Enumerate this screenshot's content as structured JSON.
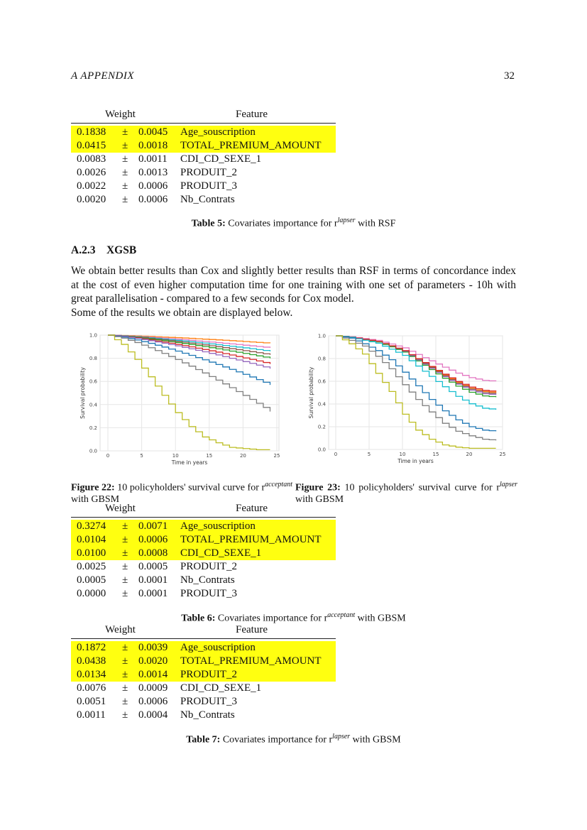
{
  "header": {
    "section": "A   APPENDIX",
    "page_number": "32"
  },
  "table5": {
    "headers": [
      "Weight",
      "Feature"
    ],
    "rows": [
      {
        "weight": "0.1838",
        "pm": "±",
        "error": "0.0045",
        "feature": "Age_souscription",
        "highlight": true
      },
      {
        "weight": "0.0415",
        "pm": "±",
        "error": "0.0018",
        "feature": "TOTAL_PREMIUM_AMOUNT",
        "highlight": true
      },
      {
        "weight": "0.0083",
        "pm": "±",
        "error": "0.0011",
        "feature": "CDI_CD_SEXE_1",
        "highlight": false
      },
      {
        "weight": "0.0026",
        "pm": "±",
        "error": "0.0013",
        "feature": "PRODUIT_2",
        "highlight": false
      },
      {
        "weight": "0.0022",
        "pm": "±",
        "error": "0.0006",
        "feature": "PRODUIT_3",
        "highlight": false
      },
      {
        "weight": "0.0020",
        "pm": "±",
        "error": "0.0006",
        "feature": "Nb_Contrats",
        "highlight": false
      }
    ],
    "caption_label": "Table 5:",
    "caption_text": "Covariates importance for r",
    "caption_sup": "lapser",
    "caption_tail": " with RSF"
  },
  "section": {
    "number": "A.2.3",
    "title": "XGSB"
  },
  "paragraph": [
    "We obtain better results than Cox and slightly better results than RSF in terms of concordance index at the cost of even higher computation time for one training with one set of parameters - 10h with great parallelisation - compared to a few seconds for Cox model.",
    "Some of the results we obtain are displayed below."
  ],
  "highlight_color": "#ffff10",
  "chart_data": [
    {
      "type": "line",
      "step": true,
      "title": "",
      "xlabel": "Time in years",
      "ylabel": "Survival probability",
      "xlim": [
        0,
        25
      ],
      "ylim": [
        0,
        1
      ],
      "xticks": [
        "0",
        "5",
        "10",
        "15",
        "20",
        "25"
      ],
      "yticks": [
        "0.0",
        "0.2",
        "0.4",
        "0.6",
        "0.8",
        "1.0"
      ],
      "grid": true,
      "x": [
        0,
        2,
        4,
        6,
        8,
        10,
        12,
        14,
        16,
        18,
        20,
        22,
        24
      ],
      "series": [
        {
          "color": "#ff7f0e",
          "values": [
            1,
            0.997,
            0.993,
            0.988,
            0.983,
            0.978,
            0.972,
            0.965,
            0.959,
            0.952,
            0.945,
            0.937,
            0.93
          ]
        },
        {
          "color": "#e377c2",
          "values": [
            1,
            0.996,
            0.989,
            0.982,
            0.974,
            0.965,
            0.955,
            0.945,
            0.935,
            0.924,
            0.913,
            0.902,
            0.89
          ]
        },
        {
          "color": "#17becf",
          "values": [
            1,
            0.994,
            0.986,
            0.977,
            0.966,
            0.955,
            0.943,
            0.931,
            0.917,
            0.904,
            0.89,
            0.875,
            0.86
          ]
        },
        {
          "color": "#8c564b",
          "values": [
            1,
            0.993,
            0.984,
            0.972,
            0.959,
            0.946,
            0.931,
            0.916,
            0.9,
            0.883,
            0.866,
            0.848,
            0.83
          ]
        },
        {
          "color": "#2ca02c",
          "values": [
            1,
            0.992,
            0.981,
            0.967,
            0.952,
            0.936,
            0.919,
            0.901,
            0.882,
            0.862,
            0.842,
            0.821,
            0.8
          ]
        },
        {
          "color": "#d62728",
          "values": [
            1,
            0.99,
            0.976,
            0.959,
            0.94,
            0.92,
            0.899,
            0.876,
            0.853,
            0.828,
            0.803,
            0.777,
            0.75
          ]
        },
        {
          "color": "#9467bd",
          "values": [
            1,
            0.989,
            0.972,
            0.952,
            0.93,
            0.907,
            0.882,
            0.856,
            0.829,
            0.8,
            0.771,
            0.741,
            0.71
          ]
        },
        {
          "color": "#1f77b4",
          "values": [
            1,
            0.983,
            0.958,
            0.929,
            0.897,
            0.862,
            0.825,
            0.787,
            0.746,
            0.704,
            0.661,
            0.616,
            0.57
          ]
        },
        {
          "color": "#7f7f7f",
          "values": [
            1,
            0.974,
            0.936,
            0.891,
            0.842,
            0.789,
            0.732,
            0.673,
            0.611,
            0.546,
            0.479,
            0.411,
            0.34
          ]
        },
        {
          "color": "#bcbd22",
          "values": [
            1,
            0.92,
            0.79,
            0.64,
            0.48,
            0.33,
            0.21,
            0.12,
            0.07,
            0.03,
            0.02,
            0.01,
            0.01
          ]
        }
      ]
    },
    {
      "type": "line",
      "step": true,
      "title": "",
      "xlabel": "Time in years",
      "ylabel": "Survival probability",
      "xlim": [
        0,
        25
      ],
      "ylim": [
        0,
        1
      ],
      "xticks": [
        "0",
        "5",
        "10",
        "15",
        "20",
        "25"
      ],
      "yticks": [
        "0.0",
        "0.2",
        "0.4",
        "0.6",
        "0.8",
        "1.0"
      ],
      "grid": true,
      "x": [
        0,
        2,
        4,
        6,
        8,
        10,
        12,
        14,
        16,
        18,
        20,
        22,
        24
      ],
      "series": [
        {
          "color": "#e377c2",
          "values": [
            1,
            0.992,
            0.976,
            0.96,
            0.928,
            0.894,
            0.836,
            0.78,
            0.724,
            0.672,
            0.632,
            0.608,
            0.6
          ]
        },
        {
          "color": "#ff7f0e",
          "values": [
            1,
            0.99,
            0.97,
            0.95,
            0.91,
            0.868,
            0.795,
            0.725,
            0.655,
            0.59,
            0.54,
            0.51,
            0.5
          ]
        },
        {
          "color": "#8c564b",
          "values": [
            1,
            0.99,
            0.969,
            0.949,
            0.908,
            0.865,
            0.791,
            0.72,
            0.648,
            0.582,
            0.531,
            0.5,
            0.49
          ]
        },
        {
          "color": "#9467bd",
          "values": [
            1,
            0.99,
            0.969,
            0.948,
            0.906,
            0.862,
            0.787,
            0.714,
            0.641,
            0.574,
            0.522,
            0.49,
            0.48
          ]
        },
        {
          "color": "#2ca02c",
          "values": [
            1,
            0.989,
            0.968,
            0.946,
            0.903,
            0.857,
            0.779,
            0.703,
            0.627,
            0.557,
            0.503,
            0.471,
            0.46
          ]
        },
        {
          "color": "#d62728",
          "values": [
            1,
            0.99,
            0.97,
            0.951,
            0.912,
            0.87,
            0.799,
            0.73,
            0.662,
            0.598,
            0.549,
            0.52,
            0.51
          ]
        },
        {
          "color": "#17becf",
          "values": [
            1,
            0.987,
            0.961,
            0.935,
            0.883,
            0.828,
            0.734,
            0.643,
            0.552,
            0.467,
            0.402,
            0.363,
            0.35
          ]
        },
        {
          "color": "#1f77b4",
          "values": [
            1,
            0.98,
            0.93,
            0.87,
            0.79,
            0.68,
            0.56,
            0.44,
            0.34,
            0.26,
            0.2,
            0.17,
            0.16
          ]
        },
        {
          "color": "#7f7f7f",
          "values": [
            1,
            0.96,
            0.91,
            0.82,
            0.71,
            0.57,
            0.44,
            0.33,
            0.23,
            0.16,
            0.12,
            0.09,
            0.08
          ]
        },
        {
          "color": "#bcbd22",
          "values": [
            1,
            0.93,
            0.84,
            0.67,
            0.51,
            0.31,
            0.17,
            0.09,
            0.04,
            0.02,
            0.01,
            0.01,
            0.01
          ]
        }
      ]
    }
  ],
  "figures": [
    {
      "label": "Figure 22:",
      "text": "10 policyholders' survival curve for r",
      "sup": "acceptant",
      "tail": " with GBSM"
    },
    {
      "label": "Figure 23:",
      "text": "10 policyholders' survival curve for r",
      "sup": "lapser",
      "tail": " with GBSM"
    }
  ],
  "table6": {
    "headers": [
      "Weight",
      "Feature"
    ],
    "rows": [
      {
        "weight": "0.3274",
        "pm": "±",
        "error": "0.0071",
        "feature": "Age_souscription",
        "highlight": true
      },
      {
        "weight": "0.0104",
        "pm": "±",
        "error": "0.0006",
        "feature": "TOTAL_PREMIUM_AMOUNT",
        "highlight": true
      },
      {
        "weight": "0.0100",
        "pm": "±",
        "error": "0.0008",
        "feature": "CDI_CD_SEXE_1",
        "highlight": true
      },
      {
        "weight": "0.0025",
        "pm": "±",
        "error": "0.0005",
        "feature": "PRODUIT_2",
        "highlight": false
      },
      {
        "weight": "0.0005",
        "pm": "±",
        "error": "0.0001",
        "feature": "Nb_Contrats",
        "highlight": false
      },
      {
        "weight": "0.0000",
        "pm": "±",
        "error": "0.0001",
        "feature": "PRODUIT_3",
        "highlight": false
      }
    ],
    "caption_label": "Table 6:",
    "caption_text": "Covariates importance for r",
    "caption_sup": "acceptant",
    "caption_tail": " with GBSM"
  },
  "table7": {
    "headers": [
      "Weight",
      "Feature"
    ],
    "rows": [
      {
        "weight": "0.1872",
        "pm": "±",
        "error": "0.0039",
        "feature": "Age_souscription",
        "highlight": true
      },
      {
        "weight": "0.0438",
        "pm": "±",
        "error": "0.0020",
        "feature": "TOTAL_PREMIUM_AMOUNT",
        "highlight": true
      },
      {
        "weight": "0.0134",
        "pm": "±",
        "error": "0.0014",
        "feature": "PRODUIT_2",
        "highlight": true
      },
      {
        "weight": "0.0076",
        "pm": "±",
        "error": "0.0009",
        "feature": "CDI_CD_SEXE_1",
        "highlight": false
      },
      {
        "weight": "0.0051",
        "pm": "±",
        "error": "0.0006",
        "feature": "PRODUIT_3",
        "highlight": false
      },
      {
        "weight": "0.0011",
        "pm": "±",
        "error": "0.0004",
        "feature": "Nb_Contrats",
        "highlight": false
      }
    ],
    "caption_label": "Table 7:",
    "caption_text": "Covariates importance for r",
    "caption_sup": "lapser",
    "caption_tail": " with GBSM"
  }
}
